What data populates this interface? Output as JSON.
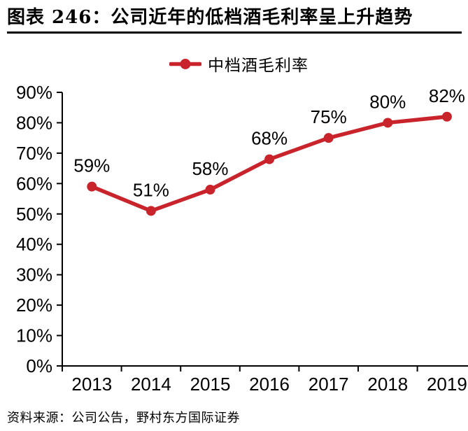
{
  "header": {
    "title": "图表 246：公司近年的低档酒毛利率呈上升趋势"
  },
  "footer": {
    "source": "资料来源：公司公告，野村东方国际证券"
  },
  "colors": {
    "accent_red": "#C9242B",
    "axis_black": "#000000"
  },
  "chart_data": {
    "type": "line",
    "title": "图表 246：公司近年的低档酒毛利率呈上升趋势",
    "categories": [
      "2013",
      "2014",
      "2015",
      "2016",
      "2017",
      "2018",
      "2019"
    ],
    "series": [
      {
        "name": "中档酒毛利率",
        "values": [
          59,
          51,
          58,
          68,
          75,
          80,
          82
        ],
        "data_labels": [
          "59%",
          "51%",
          "58%",
          "68%",
          "75%",
          "80%",
          "82%"
        ],
        "color": "#C9242B",
        "marker": "circle"
      }
    ],
    "xlabel": "",
    "ylabel": "",
    "ylim": [
      0,
      90
    ],
    "ytick_interval": 10,
    "ytick_labels": [
      "0%",
      "10%",
      "20%",
      "30%",
      "40%",
      "50%",
      "60%",
      "70%",
      "80%",
      "90%"
    ],
    "grid": false,
    "legend_position": "top-center",
    "axis_color": "#000000",
    "source": "资料来源：公司公告，野村东方国际证券"
  }
}
